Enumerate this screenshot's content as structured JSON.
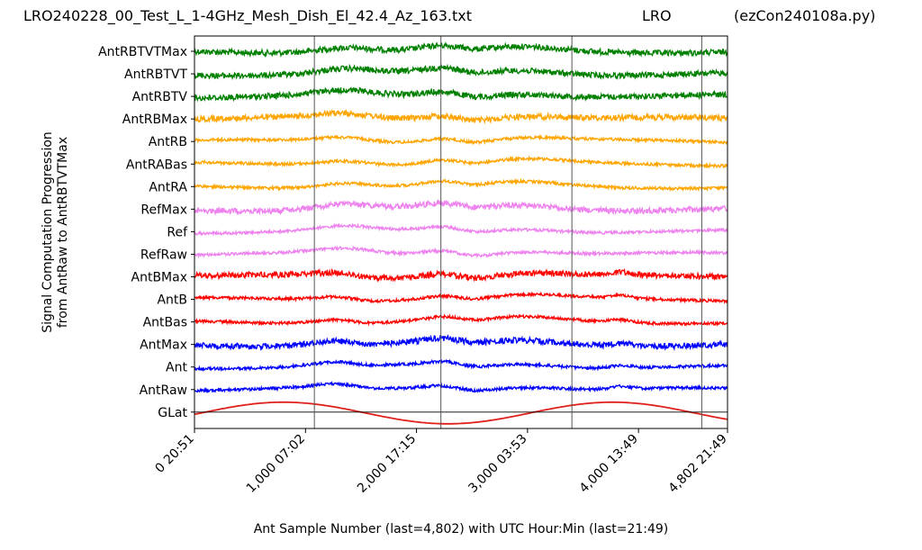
{
  "header": {
    "filename": "LRO240228_00_Test_L_1-4GHz_Mesh_Dish_El_42.4_Az_163.txt",
    "site": "LRO",
    "program": "(ezCon240108a.py)"
  },
  "chart_data": {
    "type": "line",
    "xlabel": "Ant Sample Number (last=4,802) with UTC Hour:Min (last=21:49)",
    "ylabel_line1": "Signal Computation Progression",
    "ylabel_line2": "from AntRaw to AntRBTVTMax",
    "xlim": [
      0,
      4802
    ],
    "xticks": [
      {
        "value": 0,
        "label": "0  20:51"
      },
      {
        "value": 1000,
        "label": "1,000  07:02"
      },
      {
        "value": 2000,
        "label": "2,000  17:15"
      },
      {
        "value": 3000,
        "label": "3,000  03:53"
      },
      {
        "value": 4000,
        "label": "4,000  13:49"
      },
      {
        "value": 4802,
        "label": "4,802  21:49"
      }
    ],
    "vertical_markers": [
      1080,
      2220,
      3400,
      4570
    ],
    "series": [
      {
        "name": "AntRBTVTMax",
        "color": "#008000"
      },
      {
        "name": "AntRBTVT",
        "color": "#008000"
      },
      {
        "name": "AntRBTV",
        "color": "#008000"
      },
      {
        "name": "AntRBMax",
        "color": "#ffa500"
      },
      {
        "name": "AntRB",
        "color": "#ffa500"
      },
      {
        "name": "AntRABas",
        "color": "#ffa500"
      },
      {
        "name": "AntRA",
        "color": "#ffa500"
      },
      {
        "name": "RefMax",
        "color": "#ee82ee"
      },
      {
        "name": "Ref",
        "color": "#ee82ee"
      },
      {
        "name": "RefRaw",
        "color": "#ee82ee"
      },
      {
        "name": "AntBMax",
        "color": "#ff0000"
      },
      {
        "name": "AntB",
        "color": "#ff0000"
      },
      {
        "name": "AntBas",
        "color": "#ff0000"
      },
      {
        "name": "AntMax",
        "color": "#0000ff"
      },
      {
        "name": "Ant",
        "color": "#0000ff"
      },
      {
        "name": "AntRaw",
        "color": "#0000ff"
      },
      {
        "name": "GLat",
        "color": "#e0201a"
      }
    ]
  }
}
